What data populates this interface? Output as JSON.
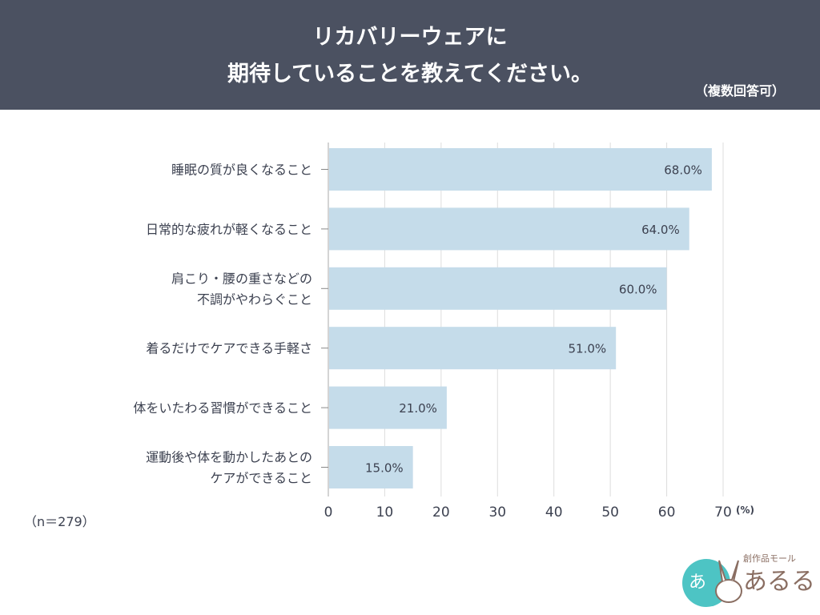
{
  "header": {
    "title_line1": "リカバリーウェアに",
    "title_line2": "期待していることを教えてください。",
    "note": "（複数回答可）"
  },
  "sample_size": "（n＝279）",
  "logo": {
    "text": "創作品モール あるる"
  },
  "colors": {
    "header": "#4b5161",
    "bar": "#c5dcea",
    "text": "#3c4150",
    "grid": "#dddddd"
  },
  "chart_data": {
    "type": "bar",
    "orientation": "horizontal",
    "categories": [
      [
        "睡眠の質が良くなること"
      ],
      [
        "日常的な疲れが軽くなること"
      ],
      [
        "肩こり・腰の重さなどの",
        "不調がやわらぐこと"
      ],
      [
        "着るだけでケアできる手軽さ"
      ],
      [
        "体をいたわる習慣ができること"
      ],
      [
        "運動後や体を動かしたあとの",
        "ケアができること"
      ]
    ],
    "values": [
      68.0,
      64.0,
      60.0,
      51.0,
      21.0,
      15.0
    ],
    "data_labels": [
      "68.0%",
      "64.0%",
      "60.0%",
      "51.0%",
      "21.0%",
      "15.0%"
    ],
    "xlim": [
      0,
      70
    ],
    "xticks": [
      "0",
      "10",
      "20",
      "30",
      "40",
      "50",
      "60",
      "70"
    ],
    "xunit": "(%)",
    "grid": true
  }
}
